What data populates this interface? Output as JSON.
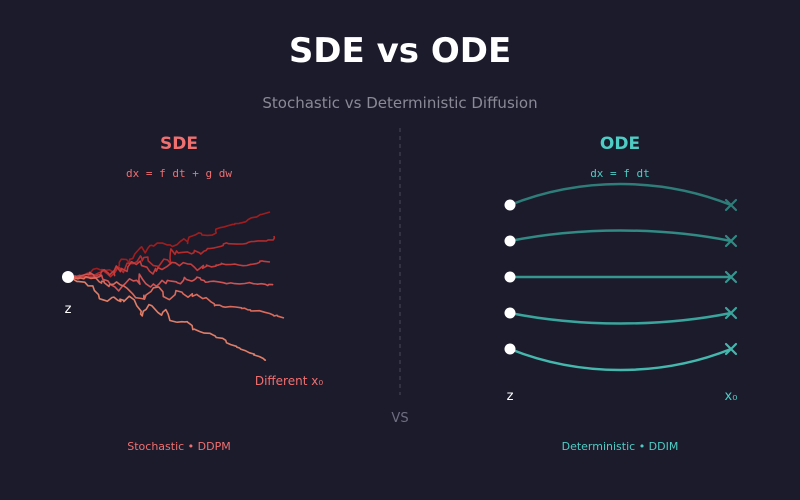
{
  "title": "SDE vs ODE",
  "subtitle": "Stochastic vs Deterministic Diffusion",
  "divider_label": "VS",
  "colors": {
    "background": "#1b1b2c",
    "sde_accent": "#f07070",
    "ode_accent": "#4ecdc4",
    "sde_path_colors": [
      "#a11d1d",
      "#b52b2b",
      "#c43c3c",
      "#d05252",
      "#db6a5a",
      "#e07d66"
    ],
    "ode_path_colors": [
      "#2e7d78",
      "#318a84",
      "#359790",
      "#3aa59c",
      "#45b8ad"
    ],
    "muted_text": "#8a8a96",
    "divider": "#4a4a5a"
  },
  "sde_panel": {
    "heading": "SDE",
    "equation": "dx = f dt + g dw",
    "start_label": "z",
    "end_label": "Different x₀",
    "caption": "Stochastic • DDPM",
    "path_count": 6
  },
  "ode_panel": {
    "heading": "ODE",
    "equation": "dx = f dt",
    "start_label": "z",
    "end_label": "x₀",
    "caption": "Deterministic • DDIM",
    "trajectory_count": 5
  }
}
